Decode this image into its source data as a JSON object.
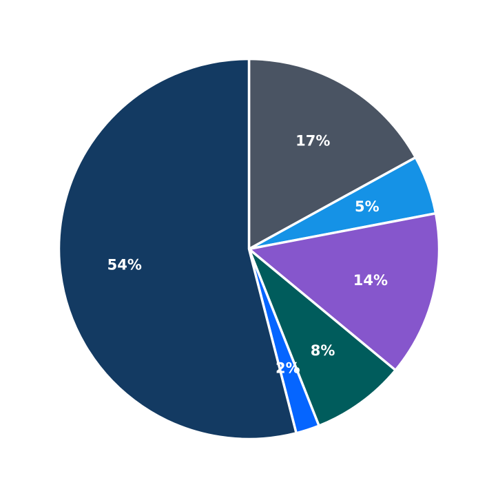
{
  "chart_data": {
    "type": "pie",
    "title": "",
    "start_angle": "top",
    "direction": "clockwise",
    "slices": [
      {
        "value": 17,
        "label": "17%",
        "color": "#4a5463"
      },
      {
        "value": 5,
        "label": "5%",
        "color": "#1592e6"
      },
      {
        "value": 14,
        "label": "14%",
        "color": "#8656cc"
      },
      {
        "value": 8,
        "label": "8%",
        "color": "#005c5c"
      },
      {
        "value": 2,
        "label": "2%",
        "color": "#0565ff"
      },
      {
        "value": 54,
        "label": "54%",
        "color": "#133a62"
      }
    ]
  }
}
